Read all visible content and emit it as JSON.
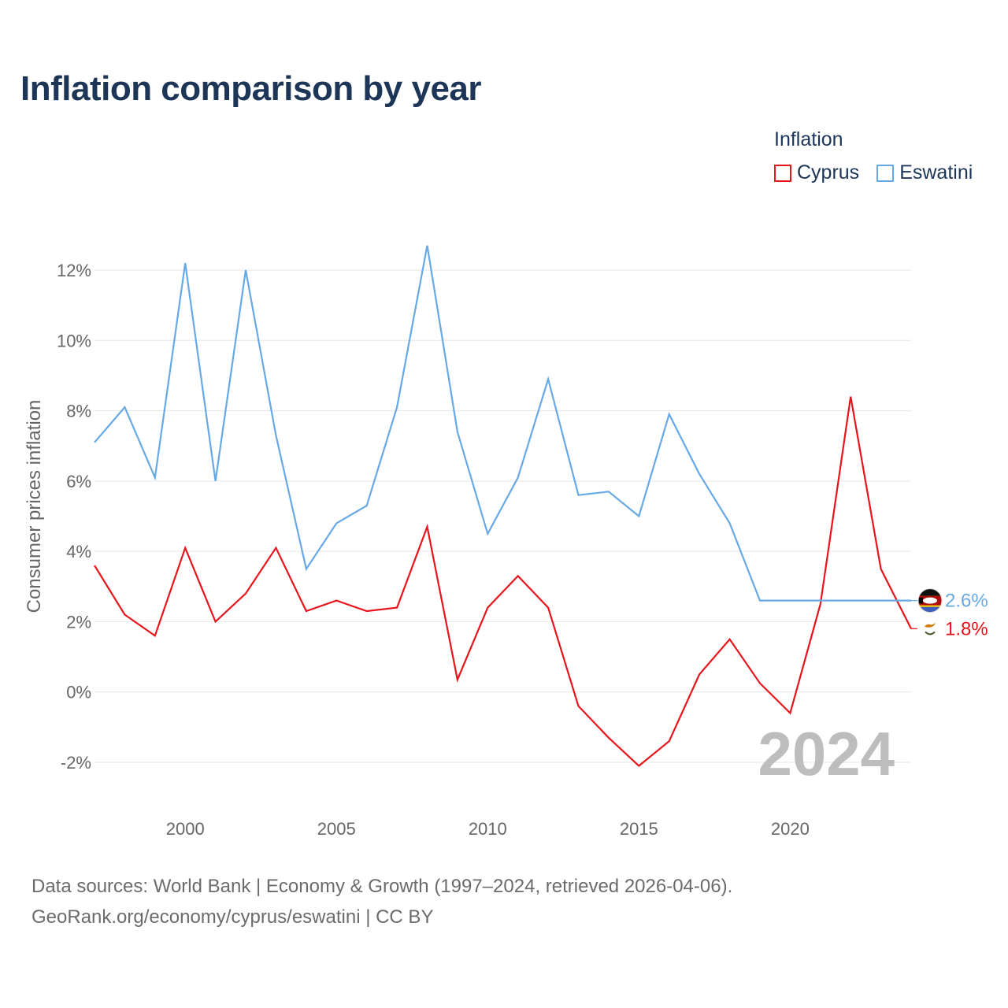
{
  "title": "Inflation comparison by year",
  "legend": {
    "title": "Inflation",
    "items": [
      {
        "label": "Cyprus",
        "color": "#e8141b"
      },
      {
        "label": "Eswatini",
        "color": "#67a9e6"
      }
    ]
  },
  "footer": {
    "line1": "Data sources: World Bank | Economy & Growth (1997–2024, retrieved 2026-04-06).",
    "line2": "GeoRank.org/economy/cyprus/eswatini | CC BY"
  },
  "chart_data": {
    "type": "line",
    "title": "Inflation comparison by year",
    "ylabel": "Consumer prices inflation",
    "xlabel": "",
    "ylim": [
      -3,
      13
    ],
    "xlim": [
      1997,
      2024
    ],
    "yticks": [
      -2,
      0,
      2,
      4,
      6,
      8,
      10,
      12
    ],
    "ytick_labels": [
      "-2%",
      "0%",
      "2%",
      "4%",
      "6%",
      "8%",
      "10%",
      "12%"
    ],
    "xticks": [
      2000,
      2005,
      2010,
      2015,
      2020
    ],
    "xtick_labels": [
      "2000",
      "2005",
      "2010",
      "2015",
      "2020"
    ],
    "grid": true,
    "watermark_year": "2024",
    "x": [
      1997,
      1998,
      1999,
      2000,
      2001,
      2002,
      2003,
      2004,
      2005,
      2006,
      2007,
      2008,
      2009,
      2010,
      2011,
      2012,
      2013,
      2014,
      2015,
      2016,
      2017,
      2018,
      2019,
      2020,
      2021,
      2022,
      2023,
      2024
    ],
    "series": [
      {
        "name": "Cyprus",
        "color": "#e8141b",
        "end_label": "1.8%",
        "icon": "cyprus-flag-icon",
        "values": [
          3.6,
          2.2,
          1.6,
          4.1,
          2.0,
          2.8,
          4.1,
          2.3,
          2.6,
          2.3,
          2.4,
          4.7,
          0.35,
          2.4,
          3.3,
          2.4,
          -0.4,
          -1.3,
          -2.1,
          -1.4,
          0.5,
          1.5,
          0.25,
          -0.6,
          2.5,
          8.4,
          3.5,
          1.8
        ]
      },
      {
        "name": "Eswatini",
        "color": "#67a9e6",
        "end_label": "2.6%",
        "icon": "eswatini-flag-icon",
        "values": [
          7.1,
          8.1,
          6.1,
          12.2,
          6.0,
          12.0,
          7.3,
          3.5,
          4.8,
          5.3,
          8.1,
          12.7,
          7.4,
          4.5,
          6.1,
          8.9,
          5.6,
          5.7,
          5.0,
          7.9,
          6.2,
          4.8,
          2.6,
          2.6,
          2.6,
          2.6,
          2.6,
          2.6
        ]
      }
    ]
  }
}
